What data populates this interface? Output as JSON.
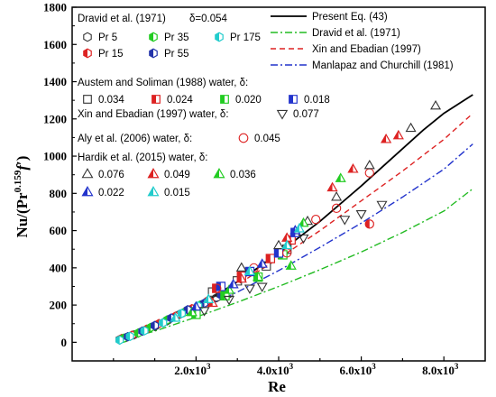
{
  "chart_data": {
    "type": "scatter",
    "xlabel": "Re",
    "ylabel": "Nu/(Pr",
    "ylabel_sup": "0.159",
    "ylabel_tail": "f",
    "ylabel_prime": "′",
    "ylabel_close": ")",
    "xlim": [
      -1000,
      9000
    ],
    "ylim": [
      -100,
      1800
    ],
    "x_ticks": [
      {
        "v": 2000,
        "label": "2.0x10",
        "exp": "3"
      },
      {
        "v": 4000,
        "label": "4.0x10",
        "exp": "3"
      },
      {
        "v": 6000,
        "label": "6.0x10",
        "exp": "3"
      },
      {
        "v": 8000,
        "label": "8.0x10",
        "exp": "3"
      }
    ],
    "y_ticks": [
      0,
      200,
      400,
      600,
      800,
      1000,
      1200,
      1400,
      1600,
      1800
    ],
    "lines": [
      {
        "name": "Present Eq. (43)",
        "color": "#000000",
        "dash": "",
        "points": [
          [
            100,
            10
          ],
          [
            500,
            35
          ],
          [
            1000,
            80
          ],
          [
            1500,
            130
          ],
          [
            2000,
            190
          ],
          [
            2500,
            255
          ],
          [
            3000,
            325
          ],
          [
            3500,
            400
          ],
          [
            4000,
            480
          ],
          [
            4500,
            565
          ],
          [
            5000,
            650
          ],
          [
            5500,
            745
          ],
          [
            6000,
            840
          ],
          [
            6500,
            940
          ],
          [
            7000,
            1040
          ],
          [
            7500,
            1140
          ],
          [
            8000,
            1230
          ],
          [
            8700,
            1330
          ]
        ]
      },
      {
        "name": "Dravid et al. (1971)",
        "color": "#22bb22",
        "dash": "8,3,2,3",
        "points": [
          [
            100,
            8
          ],
          [
            1000,
            60
          ],
          [
            2000,
            135
          ],
          [
            3000,
            215
          ],
          [
            4000,
            300
          ],
          [
            5000,
            390
          ],
          [
            6000,
            485
          ],
          [
            7000,
            590
          ],
          [
            8000,
            705
          ],
          [
            8700,
            825
          ]
        ]
      },
      {
        "name": "Xin and Ebadian (1997)",
        "color": "#dd2222",
        "dash": "6,4",
        "points": [
          [
            100,
            10
          ],
          [
            1000,
            80
          ],
          [
            2000,
            185
          ],
          [
            3000,
            310
          ],
          [
            4000,
            450
          ],
          [
            5000,
            600
          ],
          [
            6000,
            760
          ],
          [
            7000,
            920
          ],
          [
            8000,
            1090
          ],
          [
            8700,
            1230
          ]
        ]
      },
      {
        "name": "Manlapaz and Churchill (1981)",
        "color": "#2233cc",
        "dash": "8,3,2,3",
        "points": [
          [
            100,
            10
          ],
          [
            1000,
            75
          ],
          [
            2000,
            170
          ],
          [
            3000,
            270
          ],
          [
            4000,
            385
          ],
          [
            5000,
            510
          ],
          [
            6000,
            640
          ],
          [
            7000,
            780
          ],
          [
            8000,
            930
          ],
          [
            8700,
            1065
          ]
        ]
      }
    ],
    "legend_groups": [
      {
        "title": "Dravid  et al. (1971)",
        "delta": "δ=0.054",
        "items": [
          {
            "label": "Pr 5",
            "marker": "hexagon",
            "style": "open",
            "color": "#333333"
          },
          {
            "label": "Pr 35",
            "marker": "hexagon",
            "style": "half",
            "color": "#22cc22"
          },
          {
            "label": "Pr 175",
            "marker": "hexagon",
            "style": "half",
            "color": "#22cccc"
          },
          {
            "label": "Pr 15",
            "marker": "hexagon",
            "style": "half",
            "color": "#dd2222"
          },
          {
            "label": "Pr 55",
            "marker": "hexagon",
            "style": "half",
            "color": "#2233aa"
          }
        ]
      },
      {
        "title": "Austem and Soliman (1988) water, δ:",
        "items": [
          {
            "label": "0.034",
            "marker": "square",
            "style": "open",
            "color": "#333333"
          },
          {
            "label": "0.024",
            "marker": "square",
            "style": "half",
            "color": "#dd2222"
          },
          {
            "label": "0.020",
            "marker": "square",
            "style": "half",
            "color": "#22cc22"
          },
          {
            "label": "0.018",
            "marker": "square",
            "style": "half",
            "color": "#2233cc"
          }
        ]
      },
      {
        "title": "Xin and Ebadian (1997) water,  δ:",
        "items": [
          {
            "label": "0.077",
            "marker": "triangle-down",
            "style": "open",
            "color": "#333333"
          }
        ]
      },
      {
        "title": "Aly et al. (2006) water,  δ:",
        "items": [
          {
            "label": "0.045",
            "marker": "circle",
            "style": "open",
            "color": "#dd2222"
          }
        ]
      },
      {
        "title": "Hardik et al. (2015) water,  δ:",
        "items": [
          {
            "label": "0.076",
            "marker": "triangle",
            "style": "open",
            "color": "#333333"
          },
          {
            "label": "0.049",
            "marker": "triangle",
            "style": "half",
            "color": "#dd2222"
          },
          {
            "label": "0.036",
            "marker": "triangle",
            "style": "half",
            "color": "#22cc22"
          },
          {
            "label": "0.022",
            "marker": "triangle",
            "style": "half",
            "color": "#2233cc"
          },
          {
            "label": "0.015",
            "marker": "triangle",
            "style": "half",
            "color": "#22cccc"
          }
        ]
      }
    ],
    "points": [
      {
        "m": "hexagon",
        "s": "open",
        "c": "#333333",
        "pts": [
          [
            150,
            15
          ],
          [
            300,
            25
          ],
          [
            500,
            40
          ],
          [
            700,
            60
          ],
          [
            1000,
            85
          ],
          [
            1300,
            115
          ],
          [
            1600,
            150
          ],
          [
            2000,
            185
          ],
          [
            2500,
            240
          ],
          [
            2800,
            260
          ]
        ]
      },
      {
        "m": "hexagon",
        "s": "half",
        "c": "#dd2222",
        "pts": [
          [
            200,
            20
          ],
          [
            450,
            38
          ],
          [
            800,
            70
          ],
          [
            1100,
            100
          ],
          [
            1500,
            140
          ],
          [
            1900,
            180
          ],
          [
            2300,
            225
          ]
        ]
      },
      {
        "m": "hexagon",
        "s": "half",
        "c": "#22cc22",
        "pts": [
          [
            250,
            22
          ],
          [
            600,
            50
          ],
          [
            900,
            80
          ],
          [
            1300,
            120
          ],
          [
            1700,
            160
          ],
          [
            2100,
            200
          ]
        ]
      },
      {
        "m": "hexagon",
        "s": "half",
        "c": "#2233aa",
        "pts": [
          [
            350,
            30
          ],
          [
            700,
            60
          ],
          [
            1000,
            90
          ],
          [
            1400,
            130
          ],
          [
            1800,
            175
          ],
          [
            2200,
            210
          ],
          [
            2600,
            255
          ]
        ]
      },
      {
        "m": "hexagon",
        "s": "half",
        "c": "#22cccc",
        "pts": [
          [
            150,
            12
          ],
          [
            400,
            32
          ],
          [
            750,
            62
          ],
          [
            1200,
            105
          ],
          [
            1650,
            155
          ],
          [
            2050,
            195
          ]
        ]
      },
      {
        "m": "square",
        "s": "open",
        "c": "#333333",
        "pts": [
          [
            2400,
            270
          ],
          [
            3000,
            330
          ],
          [
            3700,
            410
          ],
          [
            4200,
            500
          ]
        ]
      },
      {
        "m": "square",
        "s": "half",
        "c": "#dd2222",
        "pts": [
          [
            2500,
            290
          ],
          [
            3100,
            355
          ],
          [
            3800,
            450
          ],
          [
            4300,
            550
          ]
        ]
      },
      {
        "m": "square",
        "s": "half",
        "c": "#22cc22",
        "pts": [
          [
            2000,
            150
          ],
          [
            2700,
            250
          ],
          [
            3500,
            350
          ],
          [
            4100,
            470
          ]
        ]
      },
      {
        "m": "square",
        "s": "half",
        "c": "#2233cc",
        "pts": [
          [
            2600,
            300
          ],
          [
            3300,
            380
          ],
          [
            4000,
            480
          ],
          [
            4400,
            590
          ]
        ]
      },
      {
        "m": "triangle-down",
        "s": "open",
        "c": "#333333",
        "pts": [
          [
            2200,
            170
          ],
          [
            2800,
            230
          ],
          [
            3300,
            290
          ],
          [
            3600,
            300
          ],
          [
            4600,
            560
          ],
          [
            5600,
            660
          ],
          [
            6000,
            690
          ],
          [
            6500,
            740
          ]
        ]
      },
      {
        "m": "circle",
        "s": "open",
        "c": "#dd2222",
        "pts": [
          [
            2500,
            290
          ],
          [
            3400,
            400
          ],
          [
            4200,
            480
          ],
          [
            4900,
            660
          ],
          [
            5400,
            720
          ],
          [
            6200,
            910
          ]
        ]
      },
      {
        "m": "triangle",
        "s": "open",
        "c": "#333333",
        "pts": [
          [
            3100,
            400
          ],
          [
            4000,
            520
          ],
          [
            4700,
            650
          ],
          [
            5400,
            780
          ],
          [
            6200,
            950
          ],
          [
            7200,
            1150
          ],
          [
            7800,
            1270
          ]
        ]
      },
      {
        "m": "triangle",
        "s": "half",
        "c": "#dd2222",
        "pts": [
          [
            2400,
            210
          ],
          [
            3100,
            340
          ],
          [
            4200,
            560
          ],
          [
            5300,
            830
          ],
          [
            5800,
            930
          ],
          [
            6600,
            1090
          ],
          [
            6900,
            1110
          ]
        ]
      },
      {
        "m": "triangle",
        "s": "half",
        "c": "#22cc22",
        "pts": [
          [
            1900,
            160
          ],
          [
            2800,
            280
          ],
          [
            3500,
            350
          ],
          [
            4300,
            410
          ],
          [
            4600,
            640
          ],
          [
            5500,
            880
          ]
        ]
      },
      {
        "m": "triangle",
        "s": "half",
        "c": "#2233cc",
        "pts": [
          [
            2000,
            190
          ],
          [
            2900,
            310
          ],
          [
            3600,
            420
          ],
          [
            4400,
            600
          ]
        ]
      },
      {
        "m": "triangle",
        "s": "half",
        "c": "#22cccc",
        "pts": [
          [
            1500,
            130
          ],
          [
            2300,
            230
          ],
          [
            3300,
            380
          ],
          [
            4200,
            520
          ],
          [
            4500,
            610
          ]
        ]
      },
      {
        "m": "circle",
        "s": "half",
        "c": "#dd2222",
        "pts": [
          [
            6200,
            635
          ]
        ]
      }
    ]
  }
}
